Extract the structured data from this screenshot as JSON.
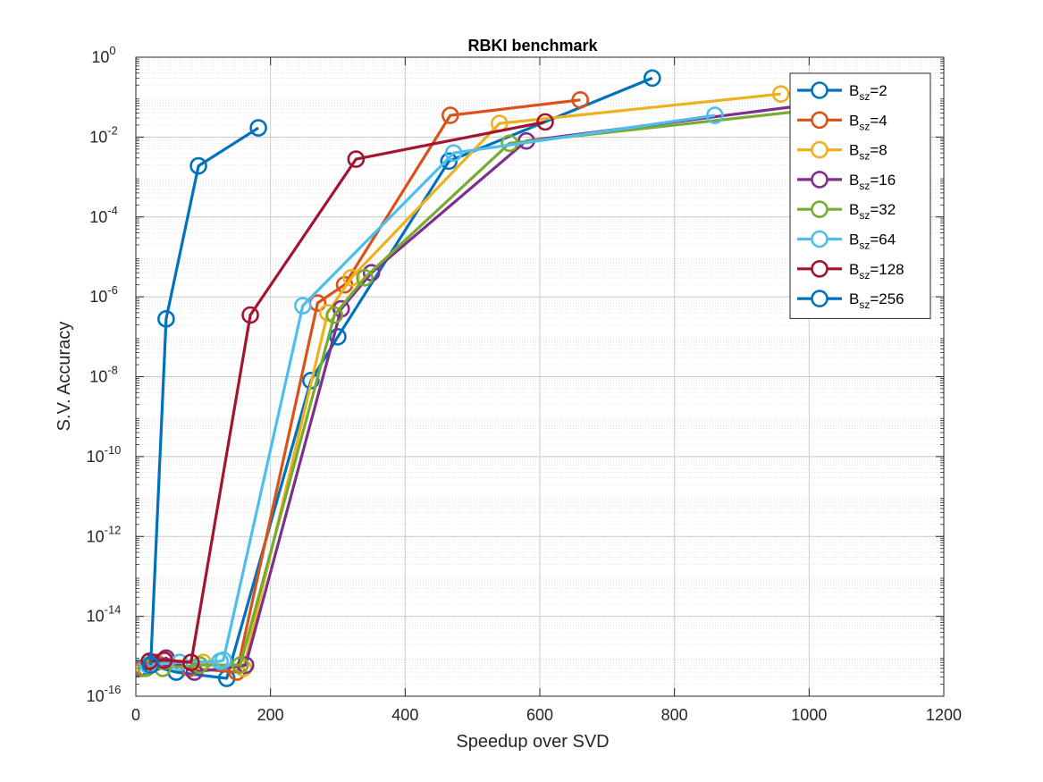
{
  "chart_data": {
    "type": "line",
    "title": "RBKI benchmark",
    "xlabel": "Speedup over SVD",
    "ylabel": "S.V. Accuracy",
    "xlim": [
      0,
      1200
    ],
    "ylim": [
      1e-16,
      1
    ],
    "y_scale": "log",
    "x_ticks": [
      0,
      200,
      400,
      600,
      800,
      1000,
      1200
    ],
    "y_tick_exponents": [
      -16,
      -14,
      -12,
      -10,
      -8,
      -6,
      -4,
      -2,
      0
    ],
    "y_tick_base": "10",
    "grid": true,
    "minor_grid": true,
    "legend_position": "top-right",
    "legend_prefix": "B",
    "legend_subscript": "sz",
    "series": [
      {
        "name": "=2",
        "color": "#0072BD",
        "x": [
          5,
          20,
          60,
          135,
          260,
          300,
          465,
          767
        ],
        "y": [
          5e-16,
          6e-16,
          4e-16,
          2.8e-16,
          8e-09,
          1e-07,
          0.0025,
          0.3
        ]
      },
      {
        "name": "=4",
        "color": "#D95319",
        "x": [
          10,
          30,
          80,
          150,
          270,
          310,
          467,
          660
        ],
        "y": [
          5e-16,
          7e-16,
          5e-16,
          4e-16,
          7e-07,
          2e-06,
          0.035,
          0.085
        ]
      },
      {
        "name": "=8",
        "color": "#EDB120",
        "x": [
          20,
          45,
          100,
          160,
          285,
          320,
          540,
          958
        ],
        "y": [
          6e-16,
          8e-16,
          7e-16,
          5e-16,
          4e-07,
          3e-06,
          0.022,
          0.12
        ]
      },
      {
        "name": "=16",
        "color": "#7E2F8E",
        "x": [
          25,
          45,
          87,
          163,
          305,
          350,
          580,
          985
        ],
        "y": [
          7e-16,
          9e-16,
          4e-16,
          6e-16,
          5e-07,
          4e-06,
          0.008,
          0.06
        ]
      },
      {
        "name": "=32",
        "color": "#77AC30",
        "x": [
          15,
          40,
          95,
          155,
          295,
          340,
          555,
          990
        ],
        "y": [
          5e-16,
          5e-16,
          6e-16,
          6e-16,
          3.5e-07,
          3e-06,
          0.007,
          0.045
        ]
      },
      {
        "name": "=64",
        "color": "#4DBEEE",
        "x": [
          18,
          65,
          125,
          130,
          248,
          472,
          860
        ],
        "y": [
          6e-16,
          7e-16,
          7.5e-16,
          8e-16,
          6e-07,
          0.004,
          0.035
        ]
      },
      {
        "name": "=128",
        "color": "#A2142F",
        "x": [
          20,
          42,
          82,
          170,
          327,
          608
        ],
        "y": [
          7.5e-16,
          8e-16,
          7e-16,
          3.5e-07,
          0.0028,
          0.024
        ]
      },
      {
        "name": "=256",
        "color": "#0072BD",
        "x": [
          22,
          45,
          93,
          182
        ],
        "y": [
          6e-16,
          2.8e-07,
          0.0019,
          0.017
        ]
      }
    ]
  }
}
